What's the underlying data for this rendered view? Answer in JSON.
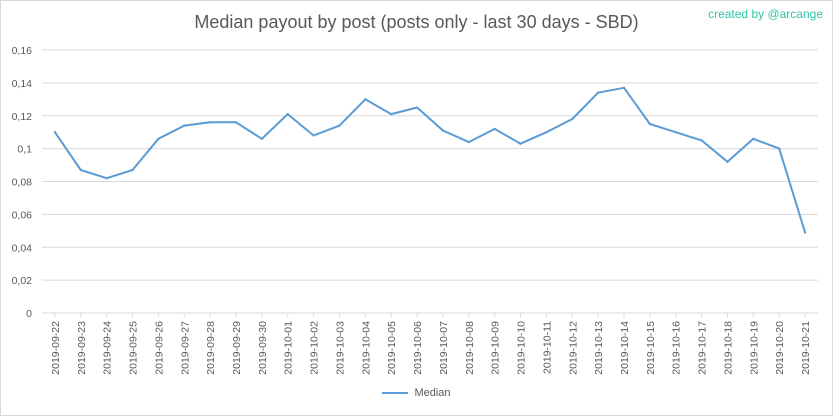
{
  "title": "Median payout by post (posts only - last 30 days - SBD)",
  "credit": "created by @arcange",
  "chart_data": {
    "type": "line",
    "title": "Median payout by post (posts only - last 30 days - SBD)",
    "xlabel": "",
    "ylabel": "",
    "ylim": [
      0,
      0.16
    ],
    "y_ticks": [
      0,
      0.02,
      0.04,
      0.06,
      0.08,
      0.1,
      0.12,
      0.14,
      0.16
    ],
    "y_tick_labels": [
      "0",
      "0,02",
      "0,04",
      "0,06",
      "0,08",
      "0,1",
      "0,12",
      "0,14",
      "0,16"
    ],
    "grid": true,
    "legend_position": "bottom",
    "color": "#5b9bd5",
    "categories": [
      "2019-09-22",
      "2019-09-23",
      "2019-09-24",
      "2019-09-25",
      "2019-09-26",
      "2019-09-27",
      "2019-09-28",
      "2019-09-29",
      "2019-09-30",
      "2019-10-01",
      "2019-10-02",
      "2019-10-03",
      "2019-10-04",
      "2019-10-05",
      "2019-10-06",
      "2019-10-07",
      "2019-10-08",
      "2019-10-09",
      "2019-10-10",
      "2019-10-11",
      "2019-10-12",
      "2019-10-13",
      "2019-10-14",
      "2019-10-15",
      "2019-10-16",
      "2019-10-17",
      "2019-10-18",
      "2019-10-19",
      "2019-10-20",
      "2019-10-21"
    ],
    "series": [
      {
        "name": "Median",
        "values": [
          0.11,
          0.087,
          0.082,
          0.087,
          0.106,
          0.114,
          0.116,
          0.116,
          0.106,
          0.121,
          0.108,
          0.114,
          0.13,
          0.121,
          0.125,
          0.111,
          0.104,
          0.112,
          0.103,
          0.11,
          0.118,
          0.134,
          0.137,
          0.115,
          0.11,
          0.105,
          0.092,
          0.106,
          0.1,
          0.049
        ]
      }
    ]
  }
}
